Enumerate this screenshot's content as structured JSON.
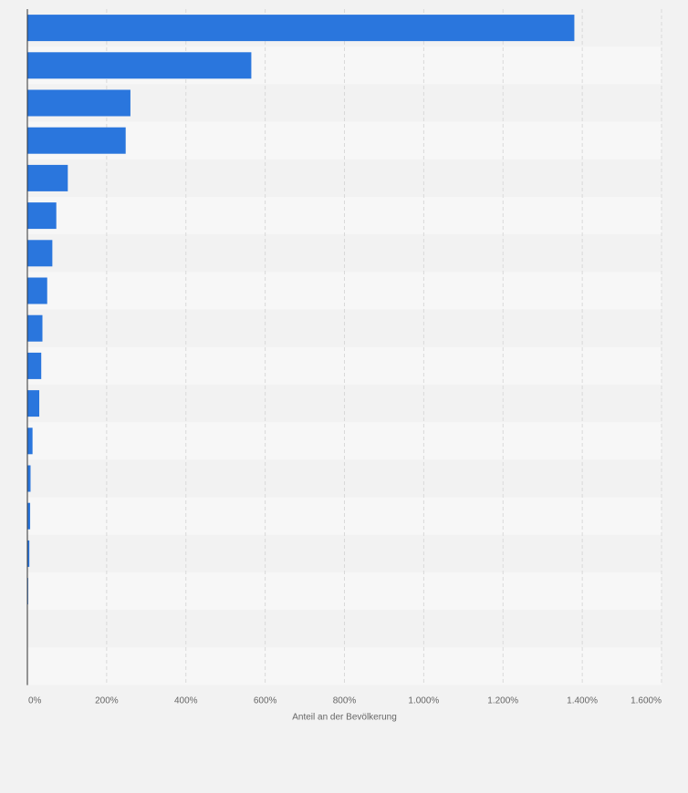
{
  "chart_data": {
    "type": "bar",
    "orientation": "horizontal",
    "title": "",
    "xlabel": "Anteil an der Bevölkerung",
    "ylabel": "",
    "categories": [
      "",
      "",
      "",
      "",
      "",
      "",
      "",
      "",
      "",
      "",
      "",
      "",
      "",
      "",
      "",
      "",
      "",
      ""
    ],
    "values": [
      1380,
      565,
      260,
      248,
      102,
      73,
      63,
      50,
      38,
      35,
      30,
      13,
      8,
      7,
      5,
      2,
      0.5,
      0.3
    ],
    "xlim": [
      0,
      1600
    ],
    "ticks": [
      {
        "value": 0,
        "label": "0%"
      },
      {
        "value": 200,
        "label": "200%"
      },
      {
        "value": 400,
        "label": "400%"
      },
      {
        "value": 600,
        "label": "600%"
      },
      {
        "value": 800,
        "label": "800%"
      },
      {
        "value": 1000,
        "label": "1.000%"
      },
      {
        "value": 1200,
        "label": "1.200%"
      },
      {
        "value": 1400,
        "label": "1.400%"
      },
      {
        "value": 1600,
        "label": "1.600%"
      }
    ],
    "grid": true,
    "bar_color": "#2a76dd",
    "band_colors": [
      "#f2f2f2",
      "#f7f7f7"
    ],
    "gridline_color": "#d9d9d9",
    "axis_line_color": "#333333"
  }
}
